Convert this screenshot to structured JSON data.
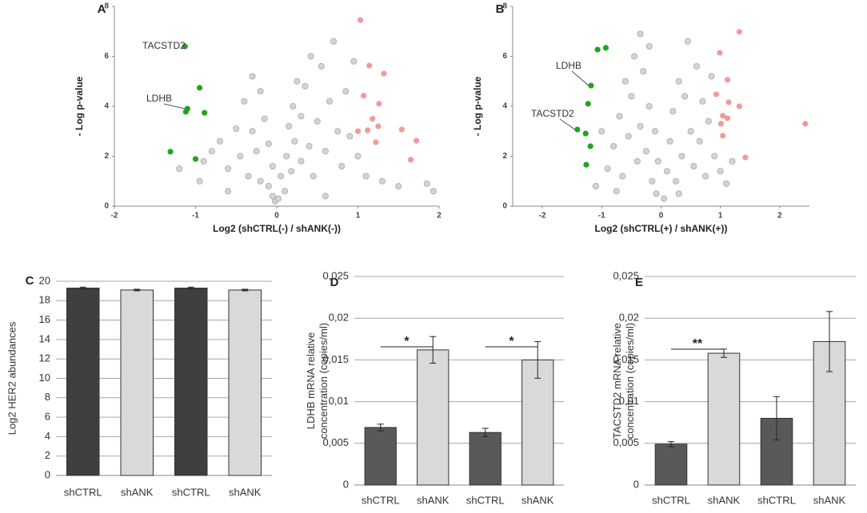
{
  "chart_data": [
    {
      "type": "scatter",
      "panel": "A",
      "xlabel": "Log2 (shCTRL(-) / shANK(-))",
      "ylabel": "- Log p-value",
      "xlim": [
        -2,
        2
      ],
      "xticks": [
        -2,
        -1,
        0,
        1,
        2
      ],
      "ylim": [
        0,
        8
      ],
      "yticks": [
        0,
        2,
        4,
        6,
        8
      ],
      "annotations": [
        "TACSTD2",
        "LDHB"
      ],
      "series": [
        {
          "color": "#d4d4d4",
          "x": [
            -0.9,
            -0.8,
            -0.7,
            -0.6,
            -0.5,
            -0.45,
            -0.4,
            -0.35,
            -0.3,
            -0.3,
            -0.25,
            -0.2,
            -0.2,
            -0.15,
            -0.1,
            -0.1,
            -0.05,
            -0.05,
            -0.02,
            0.02,
            0.05,
            0.1,
            0.12,
            0.15,
            0.18,
            0.2,
            0.22,
            0.25,
            0.3,
            0.3,
            0.35,
            0.4,
            0.42,
            0.45,
            0.5,
            0.55,
            0.6,
            0.65,
            0.7,
            0.75,
            0.8,
            0.85,
            0.9,
            0.95,
            1.0,
            1.1,
            1.3,
            1.5,
            1.85,
            1.93,
            -1.2,
            -0.95,
            0.6,
            -0.6
          ],
          "y": [
            1.8,
            2.2,
            2.6,
            1.5,
            3.1,
            2.0,
            4.2,
            1.2,
            5.2,
            3.0,
            2.2,
            4.6,
            1.0,
            3.5,
            2.5,
            0.8,
            1.6,
            0.4,
            0.2,
            0.3,
            1.2,
            0.6,
            2.0,
            3.2,
            1.4,
            4.0,
            2.6,
            5.0,
            1.8,
            3.6,
            4.8,
            2.4,
            6.0,
            1.2,
            3.4,
            5.6,
            2.2,
            4.2,
            6.6,
            3.0,
            1.6,
            4.6,
            2.8,
            5.8,
            2.0,
            1.2,
            1.0,
            0.8,
            0.9,
            0.6,
            1.5,
            1.0,
            0.4,
            0.6
          ]
        },
        {
          "color": "#1fa51f",
          "x": [
            -1.13,
            -0.95,
            -1.1,
            -1.12,
            -0.89,
            -1.31,
            -1.0
          ],
          "y": [
            6.4,
            4.74,
            3.9,
            3.78,
            3.74,
            2.18,
            1.89
          ]
        },
        {
          "color": "#f29a9a",
          "x": [
            1.03,
            1.14,
            1.32,
            1.07,
            1.26,
            1.12,
            1.22,
            1.54,
            1.72,
            1.65,
            1.18,
            1.0,
            1.25
          ],
          "y": [
            7.45,
            5.63,
            5.31,
            4.42,
            4.1,
            3.04,
            2.56,
            3.07,
            2.62,
            1.86,
            3.5,
            3.0,
            3.2
          ]
        }
      ]
    },
    {
      "type": "scatter",
      "panel": "B",
      "xlabel": "Log2 (shCTRL(+) / shANK(+))",
      "ylabel": "- Log p-value",
      "xlim": [
        -2.5,
        2.5
      ],
      "xticks": [
        -2,
        -1,
        0,
        1,
        2
      ],
      "ylim": [
        0,
        8
      ],
      "yticks": [
        0,
        2,
        4,
        6,
        8
      ],
      "annotations": [
        "LDHB",
        "TACSTD2"
      ],
      "series": [
        {
          "color": "#d4d4d4",
          "x": [
            -1.1,
            -0.9,
            -0.8,
            -0.7,
            -0.65,
            -0.6,
            -0.55,
            -0.5,
            -0.45,
            -0.4,
            -0.35,
            -0.35,
            -0.3,
            -0.25,
            -0.2,
            -0.15,
            -0.1,
            -0.08,
            -0.05,
            0.05,
            0.1,
            0.15,
            0.2,
            0.25,
            0.3,
            0.35,
            0.4,
            0.45,
            0.5,
            0.55,
            0.6,
            0.65,
            0.7,
            0.75,
            0.8,
            0.85,
            0.9,
            1.0,
            1.1,
            1.2,
            -1.0,
            -0.75,
            0.3,
            -0.2
          ],
          "y": [
            0.8,
            1.5,
            2.4,
            3.6,
            1.2,
            5.0,
            2.8,
            4.4,
            6.0,
            1.8,
            6.9,
            3.2,
            5.4,
            2.2,
            4.0,
            1.0,
            3.0,
            0.5,
            1.8,
            0.3,
            1.4,
            2.6,
            3.8,
            1.0,
            5.0,
            2.0,
            4.4,
            6.6,
            3.0,
            1.6,
            5.6,
            2.6,
            4.2,
            1.2,
            3.4,
            5.2,
            2.0,
            1.4,
            0.9,
            1.8,
            3.0,
            0.6,
            0.5,
            6.4
          ]
        },
        {
          "color": "#1fa51f",
          "x": [
            -1.07,
            -0.93,
            -1.18,
            -1.23,
            -1.41,
            -1.27,
            -1.19,
            -1.26
          ],
          "y": [
            6.27,
            6.34,
            4.83,
            4.1,
            3.07,
            2.91,
            2.4,
            1.66
          ]
        },
        {
          "color": "#f29a9a",
          "x": [
            1.32,
            0.99,
            1.12,
            1.14,
            0.93,
            1.32,
            1.04,
            1.12,
            1.01,
            1.04,
            1.42,
            2.43
          ],
          "y": [
            6.98,
            6.14,
            5.06,
            4.16,
            4.48,
            4.0,
            3.62,
            3.52,
            3.3,
            2.82,
            1.95,
            3.3
          ]
        }
      ]
    },
    {
      "type": "bar",
      "panel": "C",
      "ylabel": "Log2 HER2 abundances",
      "grid": true,
      "categories": [
        "shCTRL",
        "shANK",
        "shCTRL",
        "shANK"
      ],
      "values": [
        19.3,
        19.1,
        19.3,
        19.1
      ],
      "errors": [
        0.1,
        0.08,
        0.1,
        0.08
      ],
      "colors": [
        "#3f3f3f",
        "#d9d9d9",
        "#3f3f3f",
        "#d9d9d9"
      ],
      "ylim": [
        0,
        20
      ],
      "yticks": [
        0,
        2,
        4,
        6,
        8,
        10,
        12,
        14,
        16,
        18,
        20
      ]
    },
    {
      "type": "bar",
      "panel": "D",
      "ylabel": "LDHB mRNA relative\nconcentration  (copies/ml)",
      "grid": true,
      "categories": [
        "shCTRL",
        "shANK",
        "shCTRL",
        "shANK"
      ],
      "values": [
        0.0069,
        0.0162,
        0.0063,
        0.015
      ],
      "errors": [
        0.0004,
        0.0016,
        0.0005,
        0.0022
      ],
      "colors": [
        "#595959",
        "#d9d9d9",
        "#595959",
        "#d9d9d9"
      ],
      "annotations": [
        "*",
        "*"
      ],
      "ylim": [
        0,
        0.025
      ],
      "yticks": [
        0,
        {
          "value": 0.005,
          "label": "0,005"
        },
        {
          "value": 0.01,
          "label": "0,01"
        },
        {
          "value": 0.015,
          "label": "0,015"
        },
        {
          "value": 0.02,
          "label": "0,02"
        },
        {
          "value": 0.025,
          "label": "0,025"
        }
      ]
    },
    {
      "type": "bar",
      "panel": "E",
      "ylabel": "TACSTD2 mRNA relative\nconcentration (copies/ml)",
      "grid": true,
      "categories": [
        "shCTRL",
        "shANK",
        "shCTRL",
        "shANK"
      ],
      "values": [
        0.0049,
        0.0158,
        0.008,
        0.0172
      ],
      "errors": [
        0.0003,
        0.0005,
        0.0026,
        0.0036
      ],
      "colors": [
        "#595959",
        "#d9d9d9",
        "#595959",
        "#d9d9d9"
      ],
      "annotations": [
        "**"
      ],
      "ylim": [
        0,
        0.025
      ],
      "yticks": [
        0,
        {
          "value": 0.005,
          "label": "0,005"
        },
        {
          "value": 0.01,
          "label": "0,01"
        },
        {
          "value": 0.015,
          "label": "0,015"
        },
        {
          "value": 0.02,
          "label": "0,02"
        },
        {
          "value": 0.025,
          "label": "0,025"
        }
      ]
    }
  ]
}
